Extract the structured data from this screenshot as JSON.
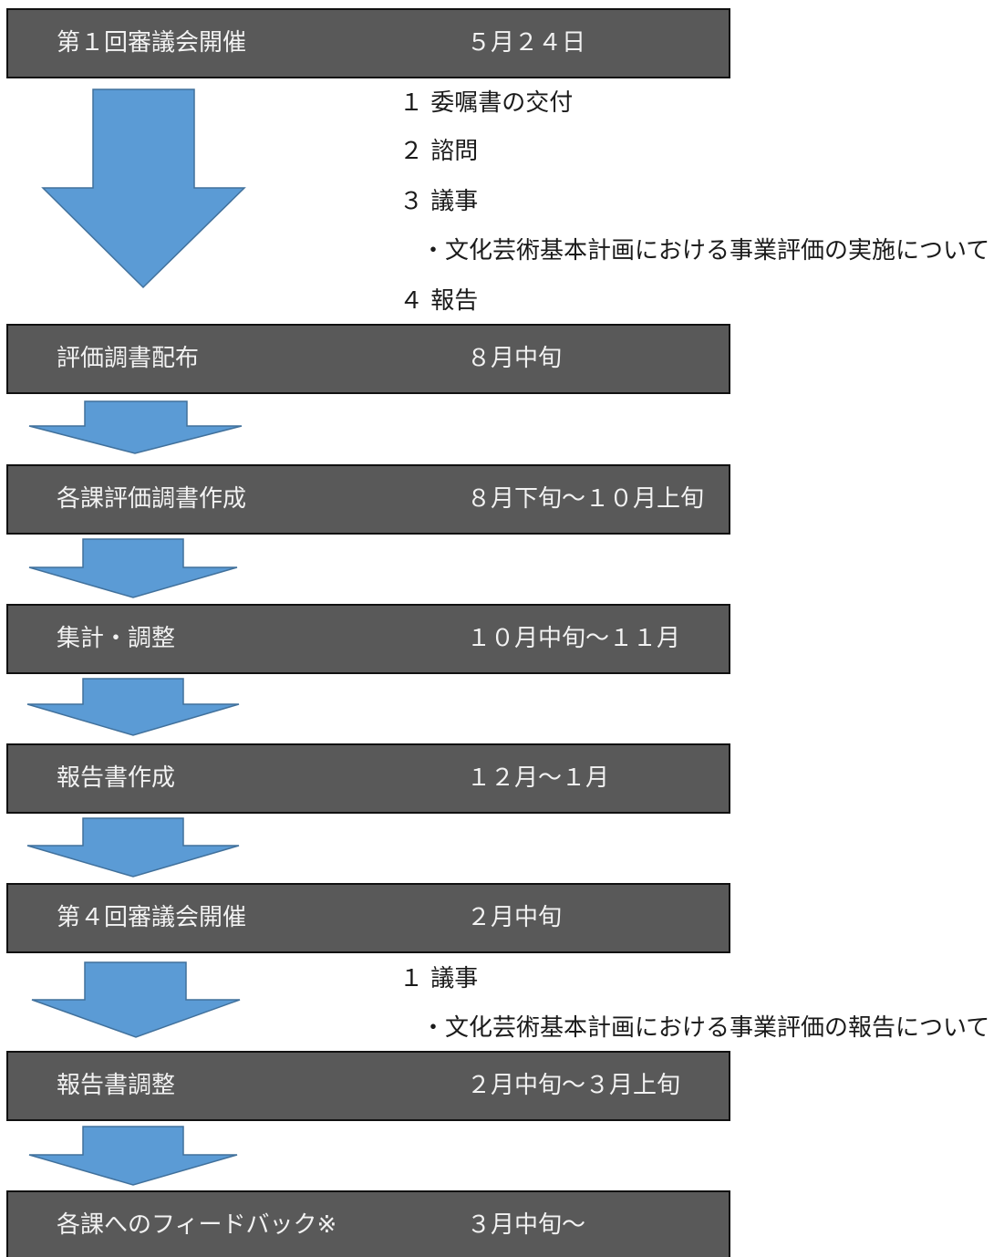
{
  "flow": {
    "steps": [
      {
        "label": "第１回審議会開催",
        "period": "５月２４日"
      },
      {
        "label": "評価調書配布",
        "period": "８月中旬"
      },
      {
        "label": "各課評価調書作成",
        "period": "８月下旬～１０月上旬"
      },
      {
        "label": "集計・調整",
        "period": "１０月中旬～１１月"
      },
      {
        "label": "報告書作成",
        "period": "１２月～１月"
      },
      {
        "label": "第４回審議会開催",
        "period": "２月中旬"
      },
      {
        "label": "報告書調整",
        "period": "２月中旬～３月上旬"
      },
      {
        "label": "各課へのフィードバック※",
        "period": "３月中旬～"
      }
    ],
    "notes": {
      "meeting1": [
        "１ 委嘱書の交付",
        "２ 諮問",
        "３ 議事",
        "・文化芸術基本計画における事業評価の実施について",
        "４ 報告"
      ],
      "meeting4": [
        "１ 議事",
        "・文化芸術基本計画における事業評価の報告について"
      ]
    }
  },
  "colors": {
    "box_fill": "#595959",
    "box_text": "#f2f2f2",
    "arrow_fill": "#5b9bd5",
    "arrow_stroke": "#41719c"
  }
}
